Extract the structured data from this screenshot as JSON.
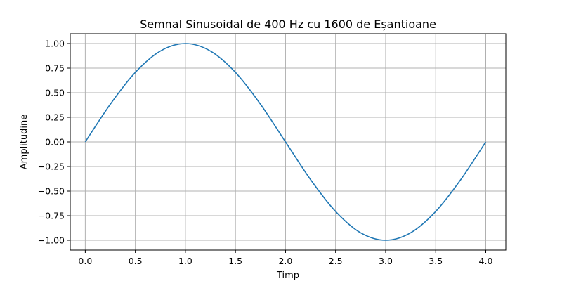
{
  "chart_data": {
    "type": "line",
    "title": "Semnal Sinusoidal de 400 Hz cu 1600 de Eșantioane",
    "xlabel": "Timp",
    "ylabel": "Amplitudine",
    "xlim": [
      -0.15,
      4.2
    ],
    "ylim": [
      -1.1,
      1.1
    ],
    "xticks": [
      0.0,
      0.5,
      1.0,
      1.5,
      2.0,
      2.5,
      3.0,
      3.5,
      4.0
    ],
    "xtick_labels": [
      "0.0",
      "0.5",
      "1.0",
      "1.5",
      "2.0",
      "2.5",
      "3.0",
      "3.5",
      "4.0"
    ],
    "yticks": [
      -1.0,
      -0.75,
      -0.5,
      -0.25,
      0.0,
      0.25,
      0.5,
      0.75,
      1.0
    ],
    "ytick_labels": [
      "−1.00",
      "−0.75",
      "−0.50",
      "−0.25",
      "0.00",
      "0.25",
      "0.50",
      "0.75",
      "1.00"
    ],
    "grid": true,
    "series": [
      {
        "color": "#1f77b4",
        "x": [
          0.0,
          0.25,
          0.5,
          0.75,
          1.0,
          1.25,
          1.5,
          1.75,
          2.0,
          2.25,
          2.5,
          2.75,
          3.0,
          3.25,
          3.5,
          3.75,
          4.0
        ],
        "y": [
          0.0,
          0.383,
          0.707,
          0.924,
          1.0,
          0.924,
          0.707,
          0.383,
          0.0,
          -0.383,
          -0.707,
          -0.924,
          -1.0,
          -0.924,
          -0.707,
          -0.383,
          0.0
        ]
      }
    ]
  }
}
